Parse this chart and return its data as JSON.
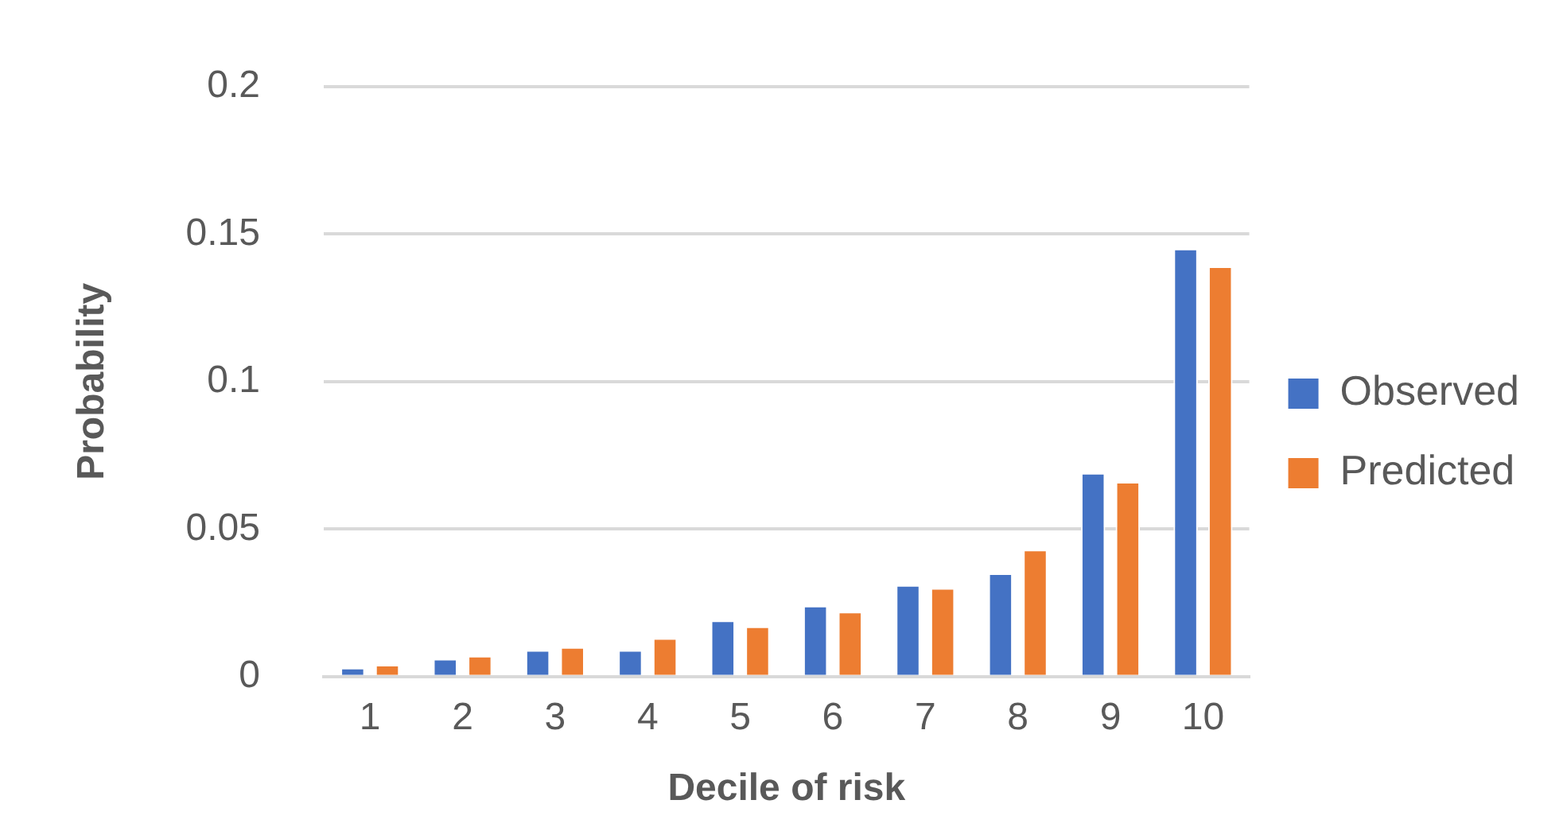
{
  "chart_data": {
    "type": "bar",
    "xlabel": "Decile of risk",
    "ylabel": "Probability",
    "categories": [
      "1",
      "2",
      "3",
      "4",
      "5",
      "6",
      "7",
      "8",
      "9",
      "10"
    ],
    "series": [
      {
        "name": "Observed",
        "color": "#4472c4",
        "values": [
          0.003,
          0.006,
          0.009,
          0.009,
          0.019,
          0.024,
          0.031,
          0.035,
          0.069,
          0.145
        ]
      },
      {
        "name": "Predicted",
        "color": "#ed7d31",
        "values": [
          0.004,
          0.007,
          0.01,
          0.013,
          0.017,
          0.022,
          0.03,
          0.043,
          0.066,
          0.139
        ]
      }
    ],
    "ylim": [
      0,
      0.2
    ],
    "yticks": [
      0,
      0.05,
      0.1,
      0.15,
      0.2
    ],
    "grid": "y",
    "legend": "right"
  }
}
